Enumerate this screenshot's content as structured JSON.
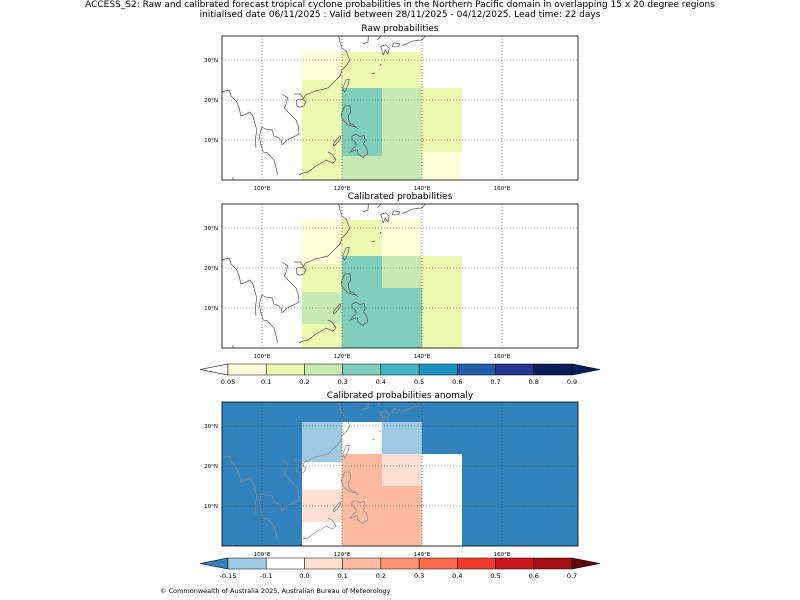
{
  "header": {
    "line1": "ACCESS_S2: Raw and calibrated forecast tropical cyclone probabilities in the Northern Pacific domain in overlapping 15 x 20 degree regions",
    "line2": "initialised date 06/11/2025 :  Valid between 28/11/2025 - 04/12/2025. Lead time: 22 days"
  },
  "panels": [
    {
      "title": "Raw probabilities"
    },
    {
      "title": "Calibrated probabilities"
    },
    {
      "title": "Calibrated probabilities anomaly"
    }
  ],
  "axes": {
    "lon_labels": [
      "100°E",
      "120°E",
      "140°E",
      "160°E"
    ],
    "lat_labels": [
      "30°N",
      "20°N",
      "10°N"
    ]
  },
  "colorbar_prob": {
    "labels": [
      "0.05",
      "0.1",
      "0.2",
      "0.3",
      "0.4",
      "0.5",
      "0.6",
      "0.7",
      "0.8",
      "0.9"
    ],
    "colors": [
      "#ffffd9",
      "#edf8b1",
      "#c7e9b4",
      "#7fcdbb",
      "#41b6c4",
      "#1d91c0",
      "#225ea8",
      "#253494",
      "#081d58"
    ],
    "under_color": "#ffffff",
    "over_color": "#081d58"
  },
  "colorbar_anom": {
    "labels": [
      "-0.15",
      "-0.1",
      "0.0",
      "0.1",
      "0.2",
      "0.3",
      "0.4",
      "0.5",
      "0.6",
      "0.7"
    ],
    "colors": [
      "#9ecae1",
      "#ffffff",
      "#fee0d2",
      "#fcbba1",
      "#fc9272",
      "#fb6a4a",
      "#ef3b2c",
      "#cb181d",
      "#a50f15"
    ],
    "under_color": "#3182bd",
    "over_color": "#67000d"
  },
  "regions": {
    "raw": [
      {
        "lon": [
          110,
          120
        ],
        "lat": [
          25,
          32
        ],
        "color": "#ffffd9"
      },
      {
        "lon": [
          110,
          120
        ],
        "lat": [
          0,
          25
        ],
        "color": "#edf8b1"
      },
      {
        "lon": [
          120,
          140
        ],
        "lat": [
          23,
          32
        ],
        "color": "#edf8b1"
      },
      {
        "lon": [
          120,
          130
        ],
        "lat": [
          6,
          23
        ],
        "color": "#7fcdbb"
      },
      {
        "lon": [
          120,
          130
        ],
        "lat": [
          0,
          6
        ],
        "color": "#c7e9b4"
      },
      {
        "lon": [
          130,
          140
        ],
        "lat": [
          0,
          23
        ],
        "color": "#c7e9b4"
      },
      {
        "lon": [
          140,
          150
        ],
        "lat": [
          7,
          23
        ],
        "color": "#edf8b1"
      },
      {
        "lon": [
          140,
          150
        ],
        "lat": [
          0,
          7
        ],
        "color": "#ffffd9"
      }
    ],
    "calibrated": [
      {
        "lon": [
          110,
          120
        ],
        "lat": [
          21,
          32
        ],
        "color": "#ffffd9"
      },
      {
        "lon": [
          110,
          120
        ],
        "lat": [
          14,
          21
        ],
        "color": "#edf8b1"
      },
      {
        "lon": [
          110,
          120
        ],
        "lat": [
          6,
          14
        ],
        "color": "#c7e9b4"
      },
      {
        "lon": [
          110,
          120
        ],
        "lat": [
          0,
          6
        ],
        "color": "#edf8b1"
      },
      {
        "lon": [
          120,
          130
        ],
        "lat": [
          23,
          32
        ],
        "color": "#edf8b1"
      },
      {
        "lon": [
          130,
          140
        ],
        "lat": [
          23,
          32
        ],
        "color": "#ffffd9"
      },
      {
        "lon": [
          130,
          140
        ],
        "lat": [
          15,
          23
        ],
        "color": "#c7e9b4"
      },
      {
        "lon": [
          120,
          130
        ],
        "lat": [
          0,
          23
        ],
        "color": "#7fcdbb"
      },
      {
        "lon": [
          130,
          140
        ],
        "lat": [
          0,
          15
        ],
        "color": "#7fcdbb"
      },
      {
        "lon": [
          140,
          150
        ],
        "lat": [
          0,
          23
        ],
        "color": "#edf8b1"
      }
    ],
    "anomaly": [
      {
        "lon": [
          90,
          179
        ],
        "lat": [
          0,
          36
        ],
        "color": "#3182bd"
      },
      {
        "lon": [
          110,
          120
        ],
        "lat": [
          21,
          31
        ],
        "color": "#9ecae1"
      },
      {
        "lon": [
          110,
          120
        ],
        "lat": [
          0,
          21
        ],
        "color": "#ffffff"
      },
      {
        "lon": [
          110,
          120
        ],
        "lat": [
          6,
          14
        ],
        "color": "#fee0d2"
      },
      {
        "lon": [
          120,
          130
        ],
        "lat": [
          23,
          31
        ],
        "color": "#ffffff"
      },
      {
        "lon": [
          130,
          140
        ],
        "lat": [
          23,
          31
        ],
        "color": "#9ecae1"
      },
      {
        "lon": [
          120,
          130
        ],
        "lat": [
          0,
          23
        ],
        "color": "#fcbba1"
      },
      {
        "lon": [
          130,
          140
        ],
        "lat": [
          15,
          23
        ],
        "color": "#fee0d2"
      },
      {
        "lon": [
          130,
          140
        ],
        "lat": [
          0,
          15
        ],
        "color": "#fcbba1"
      },
      {
        "lon": [
          140,
          150
        ],
        "lat": [
          0,
          23
        ],
        "color": "#ffffff"
      }
    ]
  },
  "footer": "© Commonwealth of Australia 2025, Australian Bureau of Meteorology"
}
